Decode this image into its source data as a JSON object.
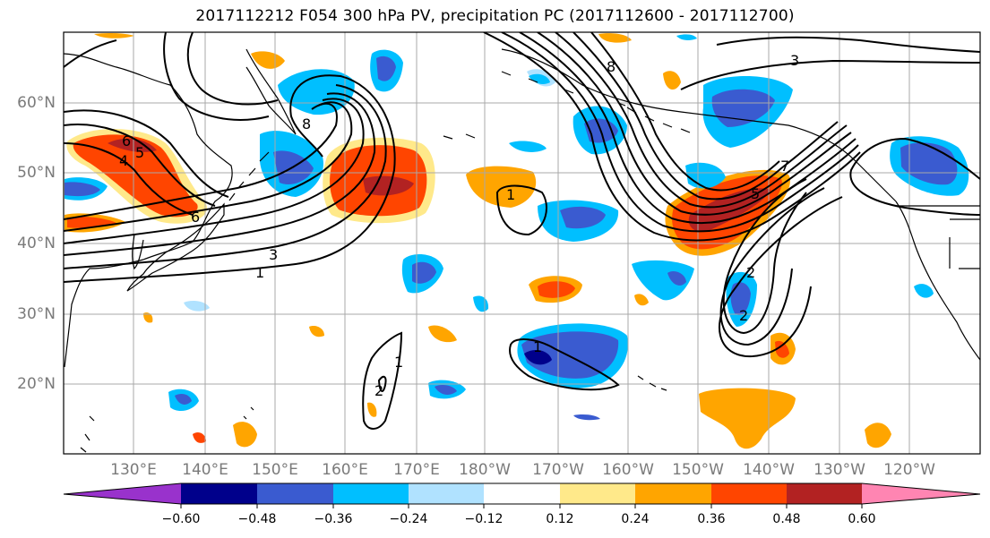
{
  "title": "2017112212 F054 300 hPa PV, precipitation PC (2017112600 - 2017112700)",
  "map": {
    "lat_labels": [
      "60°N",
      "50°N",
      "40°N",
      "30°N",
      "20°N"
    ],
    "lon_labels": [
      "130°E",
      "140°E",
      "150°E",
      "160°E",
      "170°E",
      "180°W",
      "170°W",
      "160°W",
      "150°W",
      "140°W",
      "130°W",
      "120°W"
    ],
    "contour_labels": [
      "6",
      "5",
      "4",
      "6",
      "3",
      "1",
      "8",
      "2",
      "1",
      "1",
      "2",
      "8",
      "3",
      "7",
      "5",
      "2",
      "1"
    ]
  },
  "colorbar": {
    "tick_labels": [
      "−0.60",
      "−0.48",
      "−0.36",
      "−0.24",
      "−0.12",
      "0.12",
      "0.24",
      "0.36",
      "0.48",
      "0.60"
    ],
    "colors": [
      "#9932cc",
      "#00008b",
      "#3a5bd0",
      "#00bfff",
      "#b0e2ff",
      "#ffffff",
      "#ffe98a",
      "#ffa500",
      "#ff4500",
      "#b22222",
      "#ff85b2"
    ]
  }
}
